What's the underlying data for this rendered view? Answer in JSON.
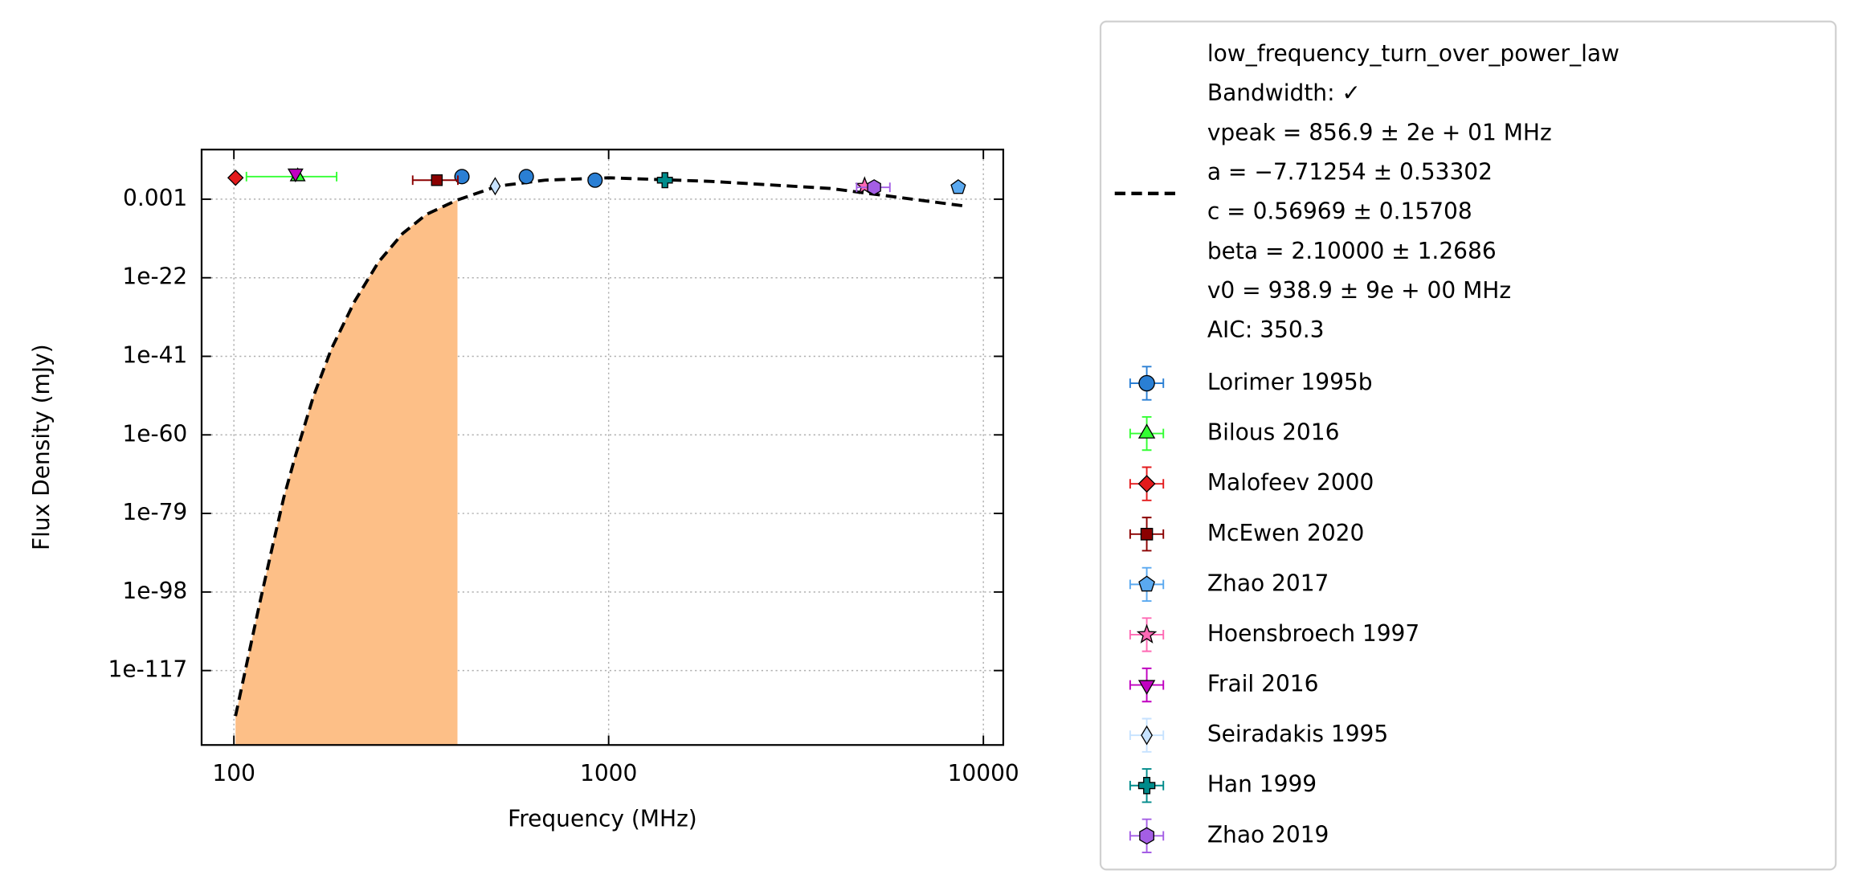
{
  "chart_data": {
    "type": "scatter",
    "xlabel": "Frequency (MHz)",
    "ylabel": "Flux Density (mJy)",
    "xscale": "log",
    "yscale": "log",
    "grid": true,
    "xlim": [
      82,
      11300
    ],
    "ylim": [
      1e-135,
      1000000000.0
    ],
    "xticks": [
      100,
      1000,
      10000
    ],
    "yticks": [
      0.001,
      {
        "value": 1e-22,
        "label": "1e-22"
      },
      {
        "value": 1e-41,
        "label": "1e-41"
      },
      {
        "value": 1e-60,
        "label": "1e-60"
      },
      {
        "value": 1e-79,
        "label": "1e-79"
      },
      {
        "value": 1e-98,
        "label": "1e-98"
      },
      {
        "value": 1e-117,
        "label": "1e-117"
      }
    ],
    "fit": {
      "label_lines": [
        "low_frequency_turn_over_power_law",
        "Bandwidth: ✓",
        "vpeak = 856.9 ± 2e + 01 MHz",
        "a = −7.71254 ± 0.53302",
        "c = 0.56969 ± 0.15708",
        "beta = 2.10000 ± 1.2686",
        "v0 = 938.9 ± 9e + 00 MHz",
        "AIC: 350.3"
      ],
      "color": "#000000",
      "x": [
        101,
        109,
        117,
        126,
        136,
        146,
        163,
        182,
        210,
        243,
        282,
        326,
        392,
        505,
        676,
        1000,
        1880,
        3900,
        9000
      ],
      "values": [
        1e-128,
        1e-114,
        1e-101,
        1e-88,
        1e-75,
        1e-65,
        2e-51,
        6e-40,
        2e-28,
        6e-19,
        5e-12,
        2e-07,
        0.0005,
        1.4,
        40,
        150,
        20,
        0.4,
        2e-05
      ],
      "shade_color": "#fdbf87",
      "shade_xlim": [
        101,
        395
      ]
    },
    "series": [
      {
        "name": "Lorimer 1995b",
        "color": "#2a7fd4",
        "marker": "circle",
        "x": [
          406,
          603,
          920
        ],
        "values": [
          290,
          290,
          40
        ]
      },
      {
        "name": "Bilous 2016",
        "color": "#33ff33",
        "marker": "triangle-up",
        "x": [
          148
        ],
        "values": [
          290
        ],
        "xerr": [
          40
        ]
      },
      {
        "name": "Malofeev 2000",
        "color": "#e31a1c",
        "marker": "diamond",
        "x": [
          101
        ],
        "values": [
          150
        ]
      },
      {
        "name": "McEwen 2020",
        "color": "#8b0000",
        "marker": "square",
        "x": [
          348
        ],
        "values": [
          40
        ],
        "xerr": [
          48
        ]
      },
      {
        "name": "Zhao 2017",
        "color": "#5aa9f0",
        "marker": "pentagon",
        "x": [
          8570
        ],
        "values": [
          0.74
        ]
      },
      {
        "name": "Hoensbroech 1997",
        "color": "#ff69b4",
        "marker": "star",
        "x": [
          4820
        ],
        "values": [
          1.4
        ]
      },
      {
        "name": "Frail 2016",
        "color": "#c000c0",
        "marker": "triangle-down",
        "x": [
          146
        ],
        "values": [
          2000
        ]
      },
      {
        "name": "Seiradakis 1995",
        "color": "#c6e2ff",
        "marker": "thin-diamond",
        "x": [
          498
        ],
        "values": [
          1.4
        ]
      },
      {
        "name": "Han 1999",
        "color": "#008b8b",
        "marker": "plus",
        "x": [
          1413
        ],
        "values": [
          40
        ]
      },
      {
        "name": "Zhao 2019",
        "color": "#a45ee5",
        "marker": "hexagon",
        "x": [
          5110
        ],
        "values": [
          0.74
        ],
        "xerr": [
          520
        ]
      }
    ]
  }
}
